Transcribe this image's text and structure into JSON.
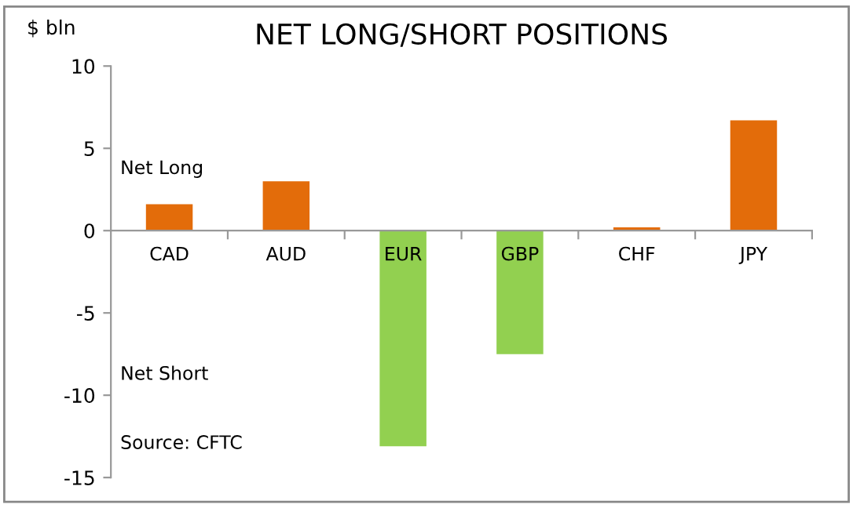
{
  "chart_data": {
    "type": "bar",
    "title": "NET LONG/SHORT POSITIONS",
    "ylabel": "$ bln",
    "categories": [
      "CAD",
      "AUD",
      "EUR",
      "GBP",
      "CHF",
      "JPY"
    ],
    "values": [
      1.6,
      3.0,
      -13.1,
      -7.5,
      0.2,
      6.7
    ],
    "colors": [
      "#e36c0a",
      "#e36c0a",
      "#92d050",
      "#92d050",
      "#e36c0a",
      "#e36c0a"
    ],
    "ylim": [
      -15,
      10
    ],
    "yticks": [
      -15,
      -10,
      -5,
      0,
      5,
      10
    ],
    "grid": false,
    "legend": false,
    "annotations": [
      "Net Long",
      "Net Short",
      "Source: CFTC"
    ]
  }
}
